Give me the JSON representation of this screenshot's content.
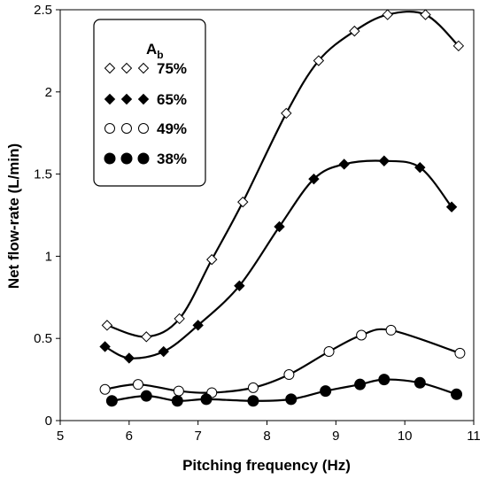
{
  "chart_data": {
    "type": "scatter",
    "xlabel": "Pitching frequency (Hz)",
    "ylabel": "Net flow-rate (L/min)",
    "xlim": [
      5,
      11
    ],
    "ylim": [
      0,
      2.5
    ],
    "xticks": [
      "5",
      "6",
      "7",
      "8",
      "9",
      "10",
      "11"
    ],
    "yticks": [
      "0",
      "0.5",
      "1",
      "1.5",
      "2",
      "2.5"
    ],
    "grid": false,
    "legend": {
      "title_main": "A",
      "title_sub": "b",
      "placement": "top-left"
    },
    "series": [
      {
        "name": "75%",
        "marker": "diamond-open",
        "x": [
          5.68,
          6.25,
          6.73,
          7.2,
          7.65,
          8.28,
          8.75,
          9.27,
          9.75,
          10.3,
          10.78
        ],
        "y": [
          0.58,
          0.51,
          0.62,
          0.98,
          1.33,
          1.87,
          2.19,
          2.37,
          2.47,
          2.47,
          2.28
        ]
      },
      {
        "name": "65%",
        "marker": "diamond-filled",
        "x": [
          5.65,
          6.0,
          6.5,
          7.0,
          7.6,
          8.18,
          8.68,
          9.12,
          9.7,
          10.22,
          10.68
        ],
        "y": [
          0.45,
          0.38,
          0.42,
          0.58,
          0.82,
          1.18,
          1.47,
          1.56,
          1.58,
          1.54,
          1.3
        ]
      },
      {
        "name": "49%",
        "marker": "circle-open",
        "x": [
          5.65,
          6.13,
          6.72,
          7.2,
          7.8,
          8.32,
          8.9,
          9.37,
          9.8,
          10.8
        ],
        "y": [
          0.19,
          0.22,
          0.18,
          0.17,
          0.2,
          0.28,
          0.42,
          0.52,
          0.55,
          0.41
        ]
      },
      {
        "name": "38%",
        "marker": "circle-filled",
        "x": [
          5.75,
          6.25,
          6.7,
          7.12,
          7.8,
          8.35,
          8.85,
          9.35,
          9.7,
          10.22,
          10.75
        ],
        "y": [
          0.12,
          0.15,
          0.12,
          0.13,
          0.12,
          0.13,
          0.18,
          0.22,
          0.25,
          0.23,
          0.16
        ]
      }
    ]
  }
}
